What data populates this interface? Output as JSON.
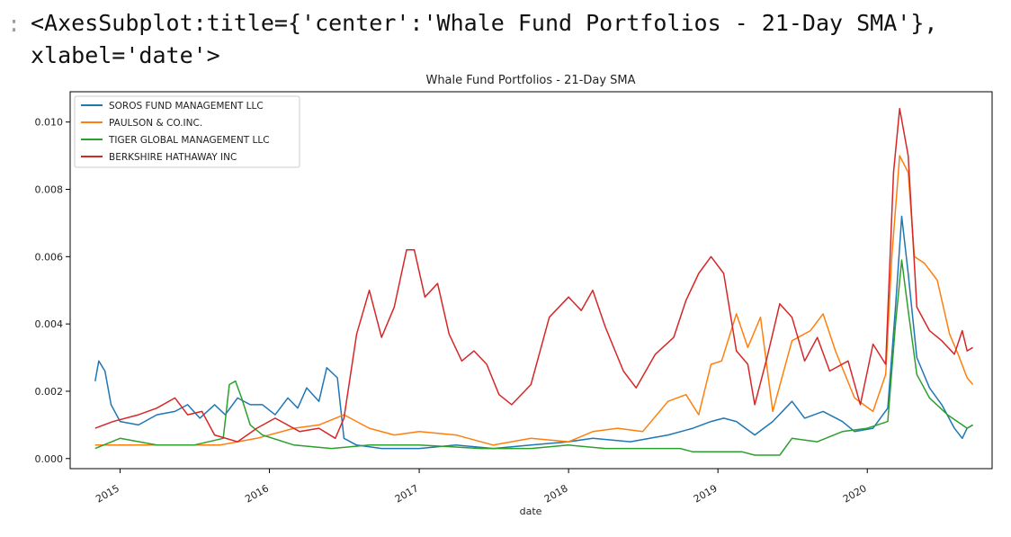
{
  "output": {
    "prompt_marker": ":",
    "repr_text": "<AxesSubplot:title={'center':'Whale Fund Portfolios - 21-Day SMA'},\nxlabel='date'>"
  },
  "chart_data": {
    "type": "line",
    "title": "Whale Fund Portfolios - 21-Day SMA",
    "xlabel": "date",
    "ylabel": "",
    "xlim": [
      "2014-09-01",
      "2020-11-01"
    ],
    "ylim": [
      -0.0003,
      0.0109
    ],
    "x_ticks": [
      "2015-01-01",
      "2016-01-01",
      "2017-01-01",
      "2018-01-01",
      "2019-01-01",
      "2020-01-01"
    ],
    "x_tick_labels": [
      "2015",
      "2016",
      "2017",
      "2018",
      "2019",
      "2020"
    ],
    "y_ticks": [
      0.0,
      0.002,
      0.004,
      0.006,
      0.008,
      0.01
    ],
    "y_tick_labels": [
      "0.000",
      "0.002",
      "0.004",
      "0.006",
      "0.008",
      "0.010"
    ],
    "grid": false,
    "legend_position": "top-left",
    "series": [
      {
        "name": "SOROS FUND MANAGEMENT LLC",
        "color": "#1f77b4",
        "points": [
          [
            "2014-11-01",
            0.0023
          ],
          [
            "2014-11-10",
            0.0029
          ],
          [
            "2014-11-25",
            0.0026
          ],
          [
            "2014-12-10",
            0.0016
          ],
          [
            "2015-01-01",
            0.0011
          ],
          [
            "2015-02-15",
            0.001
          ],
          [
            "2015-04-01",
            0.0013
          ],
          [
            "2015-05-15",
            0.0014
          ],
          [
            "2015-06-15",
            0.0016
          ],
          [
            "2015-07-15",
            0.0012
          ],
          [
            "2015-08-20",
            0.0016
          ],
          [
            "2015-09-15",
            0.0013
          ],
          [
            "2015-10-15",
            0.0018
          ],
          [
            "2015-11-15",
            0.0016
          ],
          [
            "2015-12-15",
            0.0016
          ],
          [
            "2016-01-15",
            0.0013
          ],
          [
            "2016-02-15",
            0.0018
          ],
          [
            "2016-03-10",
            0.0015
          ],
          [
            "2016-04-01",
            0.0021
          ],
          [
            "2016-05-01",
            0.0017
          ],
          [
            "2016-05-20",
            0.0027
          ],
          [
            "2016-06-15",
            0.0024
          ],
          [
            "2016-07-01",
            0.0006
          ],
          [
            "2016-08-01",
            0.0004
          ],
          [
            "2016-10-01",
            0.0003
          ],
          [
            "2017-01-01",
            0.0003
          ],
          [
            "2017-04-01",
            0.0004
          ],
          [
            "2017-07-01",
            0.0003
          ],
          [
            "2017-10-01",
            0.0004
          ],
          [
            "2018-01-01",
            0.0005
          ],
          [
            "2018-03-01",
            0.0006
          ],
          [
            "2018-06-01",
            0.0005
          ],
          [
            "2018-09-01",
            0.0007
          ],
          [
            "2018-11-01",
            0.0009
          ],
          [
            "2018-12-15",
            0.0011
          ],
          [
            "2019-01-15",
            0.0012
          ],
          [
            "2019-02-15",
            0.0011
          ],
          [
            "2019-04-01",
            0.0007
          ],
          [
            "2019-05-15",
            0.0011
          ],
          [
            "2019-07-01",
            0.0017
          ],
          [
            "2019-08-01",
            0.0012
          ],
          [
            "2019-09-15",
            0.0014
          ],
          [
            "2019-11-01",
            0.0011
          ],
          [
            "2019-12-01",
            0.0008
          ],
          [
            "2020-01-15",
            0.0009
          ],
          [
            "2020-02-20",
            0.0015
          ],
          [
            "2020-03-10",
            0.0045
          ],
          [
            "2020-03-25",
            0.0072
          ],
          [
            "2020-04-10",
            0.0055
          ],
          [
            "2020-05-01",
            0.003
          ],
          [
            "2020-06-01",
            0.0021
          ],
          [
            "2020-07-01",
            0.0016
          ],
          [
            "2020-08-01",
            0.0009
          ],
          [
            "2020-08-20",
            0.0006
          ],
          [
            "2020-09-01",
            0.0009
          ],
          [
            "2020-09-15",
            0.001
          ]
        ]
      },
      {
        "name": "PAULSON & CO.INC.",
        "color": "#ff7f0e",
        "points": [
          [
            "2014-11-01",
            0.0004
          ],
          [
            "2015-03-01",
            0.0004
          ],
          [
            "2015-06-01",
            0.0004
          ],
          [
            "2015-09-01",
            0.0004
          ],
          [
            "2015-12-01",
            0.0006
          ],
          [
            "2016-03-01",
            0.0009
          ],
          [
            "2016-05-01",
            0.001
          ],
          [
            "2016-07-01",
            0.0013
          ],
          [
            "2016-09-01",
            0.0009
          ],
          [
            "2016-11-01",
            0.0007
          ],
          [
            "2017-01-01",
            0.0008
          ],
          [
            "2017-04-01",
            0.0007
          ],
          [
            "2017-07-01",
            0.0004
          ],
          [
            "2017-10-01",
            0.0006
          ],
          [
            "2018-01-01",
            0.0005
          ],
          [
            "2018-03-01",
            0.0008
          ],
          [
            "2018-05-01",
            0.0009
          ],
          [
            "2018-07-01",
            0.0008
          ],
          [
            "2018-09-01",
            0.0017
          ],
          [
            "2018-10-15",
            0.0019
          ],
          [
            "2018-11-15",
            0.0013
          ],
          [
            "2018-12-15",
            0.0028
          ],
          [
            "2019-01-10",
            0.0029
          ],
          [
            "2019-02-15",
            0.0043
          ],
          [
            "2019-03-15",
            0.0033
          ],
          [
            "2019-04-15",
            0.0042
          ],
          [
            "2019-05-15",
            0.0014
          ],
          [
            "2019-07-01",
            0.0035
          ],
          [
            "2019-08-15",
            0.0038
          ],
          [
            "2019-09-15",
            0.0043
          ],
          [
            "2019-10-15",
            0.0032
          ],
          [
            "2019-12-01",
            0.0018
          ],
          [
            "2020-01-15",
            0.0014
          ],
          [
            "2020-02-15",
            0.0025
          ],
          [
            "2020-03-01",
            0.006
          ],
          [
            "2020-03-20",
            0.009
          ],
          [
            "2020-04-10",
            0.0085
          ],
          [
            "2020-04-25",
            0.006
          ],
          [
            "2020-05-20",
            0.0058
          ],
          [
            "2020-06-20",
            0.0053
          ],
          [
            "2020-07-20",
            0.0037
          ],
          [
            "2020-08-10",
            0.0031
          ],
          [
            "2020-09-01",
            0.0024
          ],
          [
            "2020-09-15",
            0.0022
          ]
        ]
      },
      {
        "name": "TIGER GLOBAL MANAGEMENT LLC",
        "color": "#2ca02c",
        "points": [
          [
            "2014-11-01",
            0.0003
          ],
          [
            "2015-01-01",
            0.0006
          ],
          [
            "2015-04-01",
            0.0004
          ],
          [
            "2015-07-01",
            0.0004
          ],
          [
            "2015-09-10",
            0.0006
          ],
          [
            "2015-09-25",
            0.0022
          ],
          [
            "2015-10-10",
            0.0023
          ],
          [
            "2015-10-25",
            0.0018
          ],
          [
            "2015-11-15",
            0.001
          ],
          [
            "2015-12-15",
            0.0007
          ],
          [
            "2016-03-01",
            0.0004
          ],
          [
            "2016-06-01",
            0.0003
          ],
          [
            "2016-09-01",
            0.0004
          ],
          [
            "2017-01-01",
            0.0004
          ],
          [
            "2017-06-01",
            0.0003
          ],
          [
            "2017-10-01",
            0.0003
          ],
          [
            "2018-01-01",
            0.0004
          ],
          [
            "2018-04-01",
            0.0003
          ],
          [
            "2018-07-01",
            0.0003
          ],
          [
            "2018-10-01",
            0.0003
          ],
          [
            "2018-11-01",
            0.0002
          ],
          [
            "2019-03-01",
            0.0002
          ],
          [
            "2019-04-01",
            0.0001
          ],
          [
            "2019-06-01",
            0.0001
          ],
          [
            "2019-07-01",
            0.0006
          ],
          [
            "2019-09-01",
            0.0005
          ],
          [
            "2019-11-01",
            0.0008
          ],
          [
            "2020-01-01",
            0.0009
          ],
          [
            "2020-02-20",
            0.0011
          ],
          [
            "2020-03-10",
            0.004
          ],
          [
            "2020-03-25",
            0.0059
          ],
          [
            "2020-04-10",
            0.0044
          ],
          [
            "2020-05-01",
            0.0025
          ],
          [
            "2020-06-01",
            0.0018
          ],
          [
            "2020-07-15",
            0.0013
          ],
          [
            "2020-08-20",
            0.001
          ],
          [
            "2020-09-01",
            0.0009
          ],
          [
            "2020-09-15",
            0.001
          ]
        ]
      },
      {
        "name": "BERKSHIRE HATHAWAY INC",
        "color": "#d62728",
        "points": [
          [
            "2014-11-01",
            0.0009
          ],
          [
            "2014-12-15",
            0.0011
          ],
          [
            "2015-02-15",
            0.0013
          ],
          [
            "2015-04-01",
            0.0015
          ],
          [
            "2015-05-15",
            0.0018
          ],
          [
            "2015-06-15",
            0.0013
          ],
          [
            "2015-07-20",
            0.0014
          ],
          [
            "2015-08-20",
            0.0007
          ],
          [
            "2015-10-15",
            0.0005
          ],
          [
            "2015-12-01",
            0.0009
          ],
          [
            "2016-01-15",
            0.0012
          ],
          [
            "2016-03-15",
            0.0008
          ],
          [
            "2016-05-01",
            0.0009
          ],
          [
            "2016-06-10",
            0.0006
          ],
          [
            "2016-07-01",
            0.0012
          ],
          [
            "2016-08-01",
            0.0037
          ],
          [
            "2016-09-01",
            0.005
          ],
          [
            "2016-10-01",
            0.0036
          ],
          [
            "2016-11-01",
            0.0045
          ],
          [
            "2016-12-01",
            0.0062
          ],
          [
            "2016-12-20",
            0.0062
          ],
          [
            "2017-01-15",
            0.0048
          ],
          [
            "2017-02-15",
            0.0052
          ],
          [
            "2017-03-15",
            0.0037
          ],
          [
            "2017-04-15",
            0.0029
          ],
          [
            "2017-05-15",
            0.0032
          ],
          [
            "2017-06-15",
            0.0028
          ],
          [
            "2017-07-15",
            0.0019
          ],
          [
            "2017-08-15",
            0.0016
          ],
          [
            "2017-10-01",
            0.0022
          ],
          [
            "2017-11-15",
            0.0042
          ],
          [
            "2018-01-01",
            0.0048
          ],
          [
            "2018-02-01",
            0.0044
          ],
          [
            "2018-03-01",
            0.005
          ],
          [
            "2018-04-01",
            0.0039
          ],
          [
            "2018-05-15",
            0.0026
          ],
          [
            "2018-06-15",
            0.0021
          ],
          [
            "2018-08-01",
            0.0031
          ],
          [
            "2018-09-15",
            0.0036
          ],
          [
            "2018-10-15",
            0.0047
          ],
          [
            "2018-11-15",
            0.0055
          ],
          [
            "2018-12-15",
            0.006
          ],
          [
            "2019-01-15",
            0.0055
          ],
          [
            "2019-02-15",
            0.0032
          ],
          [
            "2019-03-15",
            0.0028
          ],
          [
            "2019-04-01",
            0.0016
          ],
          [
            "2019-05-01",
            0.003
          ],
          [
            "2019-06-01",
            0.0046
          ],
          [
            "2019-07-01",
            0.0042
          ],
          [
            "2019-08-01",
            0.0029
          ],
          [
            "2019-09-01",
            0.0036
          ],
          [
            "2019-10-01",
            0.0026
          ],
          [
            "2019-11-15",
            0.0029
          ],
          [
            "2019-12-15",
            0.0016
          ],
          [
            "2020-01-15",
            0.0034
          ],
          [
            "2020-02-15",
            0.0028
          ],
          [
            "2020-03-05",
            0.0085
          ],
          [
            "2020-03-20",
            0.0104
          ],
          [
            "2020-04-10",
            0.009
          ],
          [
            "2020-05-01",
            0.0045
          ],
          [
            "2020-06-01",
            0.0038
          ],
          [
            "2020-07-01",
            0.0035
          ],
          [
            "2020-08-01",
            0.0031
          ],
          [
            "2020-08-20",
            0.0038
          ],
          [
            "2020-09-01",
            0.0032
          ],
          [
            "2020-09-15",
            0.0033
          ]
        ]
      }
    ]
  }
}
